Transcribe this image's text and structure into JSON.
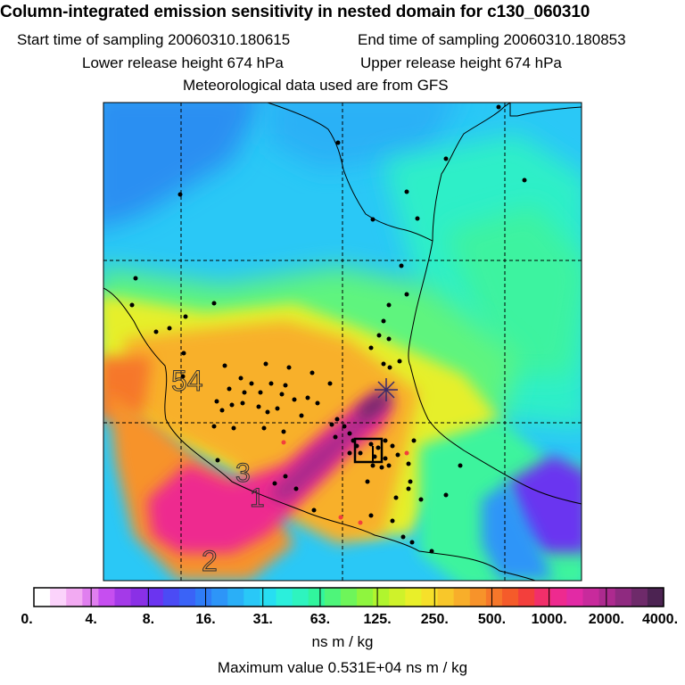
{
  "header": {
    "title": "Column-integrated emission sensitivity in nested domain for c130_060310",
    "start_label": "Start time of sampling 20060310.180615",
    "end_label": "End time of sampling 20060310.180853",
    "lower_label": "Lower release height  674 hPa",
    "upper_label": "Upper release height  674 hPa",
    "met_label": "Meteorological data used are from GFS"
  },
  "map": {
    "annotations": [
      "54",
      "3",
      "1",
      "2"
    ]
  },
  "colorbar": {
    "colors": [
      "#ffffff",
      "#fbd3fb",
      "#f2aaf2",
      "#e07fef",
      "#c64ef0",
      "#a43ae8",
      "#8a30e6",
      "#6b34f0",
      "#4b4bf5",
      "#3a63f7",
      "#2f7cf7",
      "#2d95f8",
      "#2aaff7",
      "#29c8f7",
      "#27def2",
      "#2befdc",
      "#2ef4bf",
      "#31f59d",
      "#4ef57a",
      "#6ef55a",
      "#8ff53e",
      "#b0f52e",
      "#cff22a",
      "#e9ef29",
      "#f6e02a",
      "#f8c72a",
      "#f8ae2a",
      "#f7932a",
      "#f6772a",
      "#f55b2a",
      "#f33f3c",
      "#f12f6a",
      "#ee2a8f",
      "#e22aa5",
      "#c82a9c",
      "#ad2a8f",
      "#8f2a80",
      "#6e2a6a",
      "#4c2352"
    ],
    "tick_labels": [
      "0.",
      "4.",
      "8.",
      "16.",
      "31.",
      "63.",
      "125.",
      "250.",
      "500.",
      "1000.",
      "2000.",
      "4000."
    ],
    "units": "ns m / kg"
  },
  "footer": {
    "max_value": "Maximum value  0.531E+04 ns m / kg"
  }
}
